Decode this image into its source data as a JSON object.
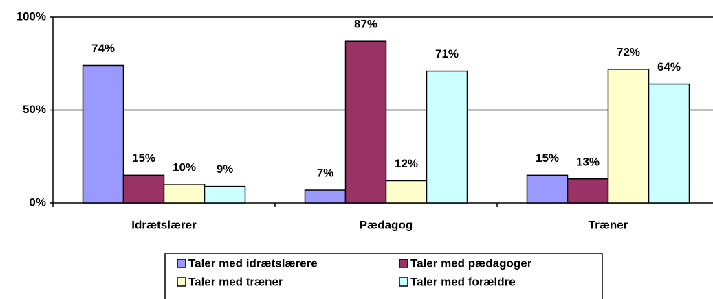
{
  "chart_data": {
    "type": "bar",
    "categories": [
      "Idrætslærer",
      "Pædagog",
      "Træner"
    ],
    "series": [
      {
        "name": "Taler med idrætslærere",
        "color": "#9999ff",
        "values": [
          74,
          7,
          15
        ],
        "value_labels": [
          "74%",
          "7%",
          "15%"
        ]
      },
      {
        "name": "Taler med pædagoger",
        "color": "#993366",
        "values": [
          15,
          87,
          13
        ],
        "value_labels": [
          "15%",
          "87%",
          "13%"
        ]
      },
      {
        "name": "Taler med træner",
        "color": "#ffffcc",
        "values": [
          10,
          12,
          72
        ],
        "value_labels": [
          "10%",
          "12%",
          "72%"
        ]
      },
      {
        "name": "Taler med forældre",
        "color": "#ccffff",
        "values": [
          9,
          71,
          64
        ],
        "value_labels": [
          "9%",
          "71%",
          "64%"
        ]
      }
    ],
    "ylim": [
      0,
      100
    ],
    "yticks": [
      {
        "value": 0,
        "label": "0%"
      },
      {
        "value": 50,
        "label": "50%"
      },
      {
        "value": 100,
        "label": "100%"
      }
    ],
    "grid": true,
    "legend": "bottom"
  }
}
